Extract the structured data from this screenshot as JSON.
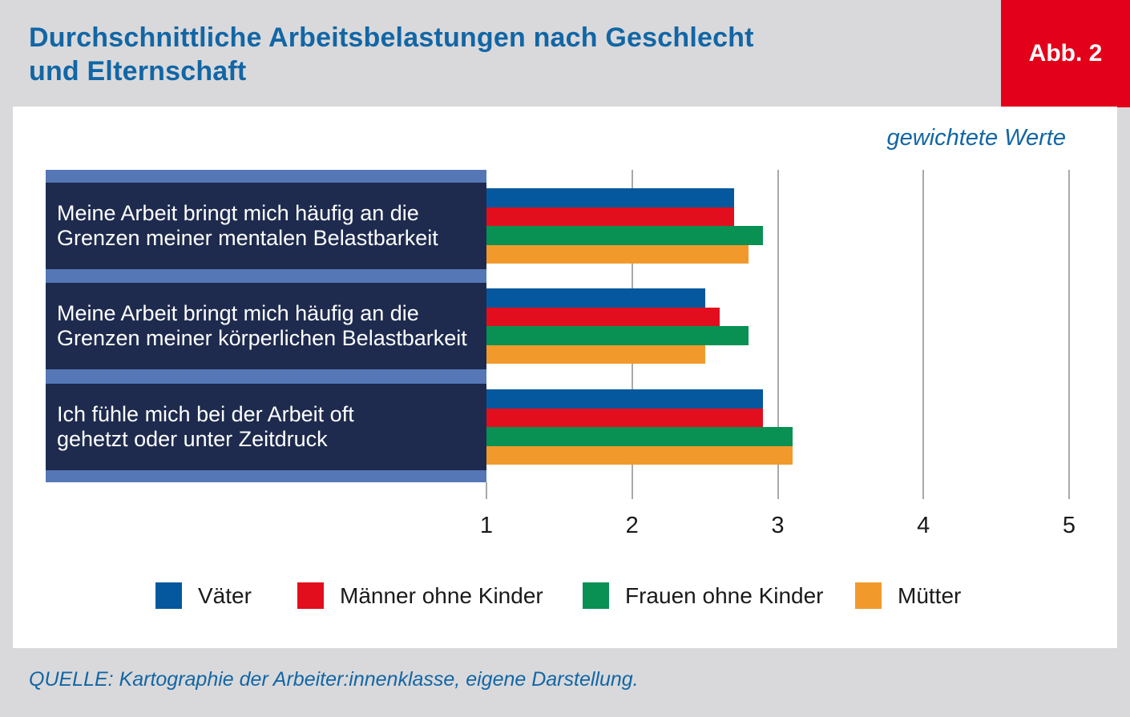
{
  "header": {
    "title_line1": "Durchschnittliche Arbeitsbelastungen nach Geschlecht",
    "title_line2": "und Elternschaft",
    "badge_label": "Abb. 2"
  },
  "source": "QUELLE: Kartographie der Arbeiter:innenklasse, eigene Darstellung.",
  "colors": {
    "page_background": "#d9d9db",
    "panel_background": "#ffffff",
    "title_blue": "#1266a5",
    "badge_red": "#e2001a",
    "category_box_navy": "#1e2b4e",
    "category_panel_blue": "#5577b5",
    "gridline_grey": "#a9a9a9",
    "axis_text": "#1a1a1a"
  },
  "chart_data": {
    "type": "bar",
    "orientation": "horizontal",
    "title": "Durchschnittliche Arbeitsbelastungen nach Geschlecht und Elternschaft",
    "annotation": "gewichtete Werte",
    "xlim": [
      1,
      5
    ],
    "x_ticks": [
      1,
      2,
      3,
      4,
      5
    ],
    "grid": "vertical",
    "legend_position": "bottom",
    "categories": [
      {
        "label": "Meine Arbeit bringt mich häufig an die Grenzen meiner mentalen Belastbarkeit",
        "lines": [
          "Meine Arbeit bringt mich häufig an die",
          "Grenzen meiner mentalen Belastbarkeit"
        ]
      },
      {
        "label": "Meine Arbeit bringt mich häufig an die Grenzen meiner körperlichen Belastbarkeit",
        "lines": [
          "Meine Arbeit bringt mich häufig an die",
          "Grenzen meiner körperlichen Belastbarkeit"
        ]
      },
      {
        "label": "Ich fühle mich bei der Arbeit oft gehetzt oder unter Zeitdruck",
        "lines": [
          "Ich fühle mich bei der Arbeit oft",
          "gehetzt oder unter Zeitdruck"
        ]
      }
    ],
    "series": [
      {
        "name": "Väter",
        "color": "#05589d",
        "values": [
          2.7,
          2.5,
          2.9
        ]
      },
      {
        "name": "Männer ohne Kinder",
        "color": "#e30e1d",
        "values": [
          2.7,
          2.6,
          2.9
        ]
      },
      {
        "name": "Frauen ohne Kinder",
        "color": "#089152",
        "values": [
          2.9,
          2.8,
          3.1
        ]
      },
      {
        "name": "Mütter",
        "color": "#f19a2b",
        "values": [
          2.8,
          2.5,
          3.1
        ]
      }
    ]
  }
}
